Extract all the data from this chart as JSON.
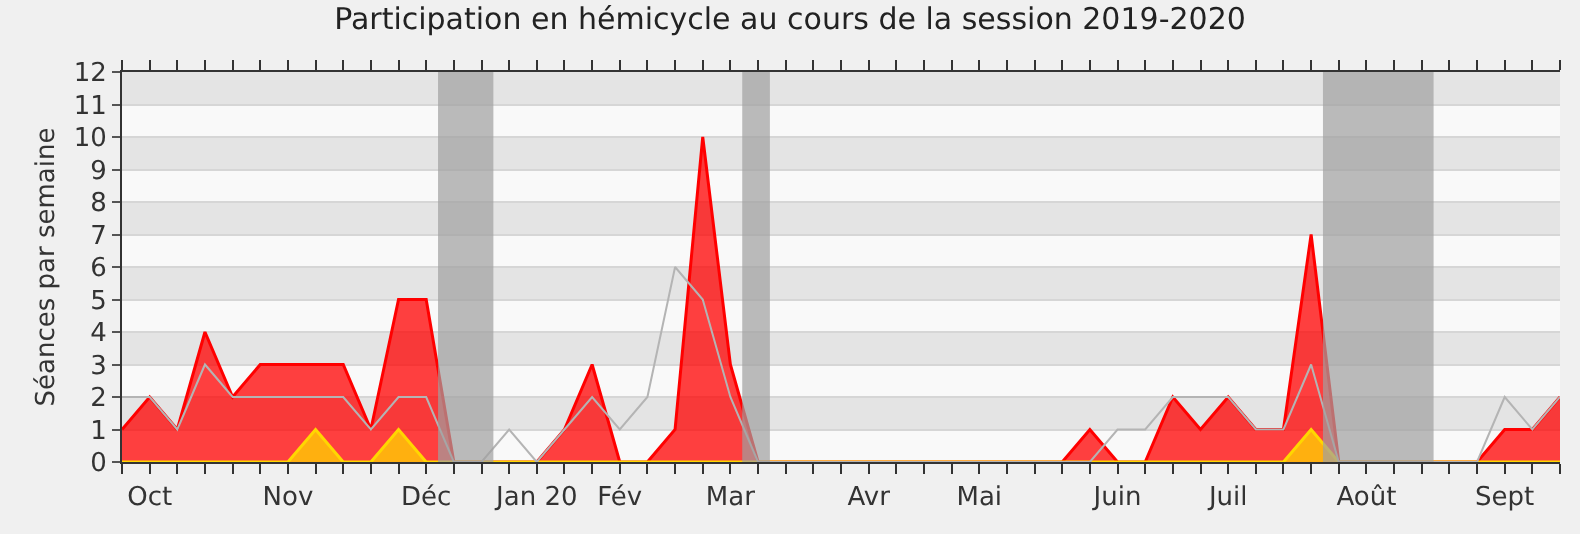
{
  "chart_data": {
    "type": "area",
    "title": "Participation en hémicycle au cours de la session 2019-2020",
    "ylabel": "Séances par semaine",
    "x": [
      "2019-09-30",
      "2019-10-07",
      "2019-10-14",
      "2019-10-21",
      "2019-10-28",
      "2019-11-04",
      "2019-11-11",
      "2019-11-18",
      "2019-11-25",
      "2019-12-02",
      "2019-12-09",
      "2019-12-16",
      "2019-12-23",
      "2019-12-30",
      "2020-01-06",
      "2020-01-13",
      "2020-01-20",
      "2020-01-27",
      "2020-02-03",
      "2020-02-10",
      "2020-02-17",
      "2020-02-24",
      "2020-03-02",
      "2020-03-09",
      "2020-03-16",
      "2020-03-23",
      "2020-03-30",
      "2020-04-06",
      "2020-04-13",
      "2020-04-20",
      "2020-04-27",
      "2020-05-04",
      "2020-05-11",
      "2020-05-18",
      "2020-05-25",
      "2020-06-01",
      "2020-06-08",
      "2020-06-15",
      "2020-06-22",
      "2020-06-29",
      "2020-07-06",
      "2020-07-13",
      "2020-07-20",
      "2020-07-27",
      "2020-08-03",
      "2020-08-10",
      "2020-08-17",
      "2020-08-24",
      "2020-08-31",
      "2020-09-07",
      "2020-09-14",
      "2020-09-21",
      "2020-09-28"
    ],
    "series": [
      {
        "color": "#ff0000",
        "values": [
          1,
          2,
          1,
          4,
          2,
          3,
          3,
          3,
          3,
          1,
          5,
          5,
          0,
          0,
          0,
          0,
          1,
          3,
          0,
          0,
          1,
          10,
          3,
          0,
          0,
          0,
          0,
          0,
          0,
          0,
          0,
          0,
          0,
          0,
          0,
          1,
          0,
          0,
          2,
          1,
          2,
          1,
          1,
          7,
          0,
          0,
          0,
          0,
          0,
          0,
          1,
          1,
          2
        ]
      },
      {
        "color": "#ffd700",
        "values": [
          0,
          0,
          0,
          0,
          0,
          0,
          0,
          1,
          0,
          0,
          1,
          0,
          0,
          0,
          0,
          0,
          0,
          0,
          0,
          0,
          0,
          0,
          0,
          0,
          0,
          0,
          0,
          0,
          0,
          0,
          0,
          0,
          0,
          0,
          0,
          0,
          0,
          0,
          0,
          0,
          0,
          0,
          0,
          1,
          0,
          0,
          0,
          0,
          0,
          0,
          0,
          0,
          0
        ]
      },
      {
        "type": "line",
        "color": "#b4b4b4",
        "values": [
          2,
          2,
          1,
          3,
          2,
          2,
          2,
          2,
          2,
          1,
          2,
          2,
          0,
          0,
          1,
          0,
          1,
          2,
          1,
          2,
          6,
          5,
          2,
          0,
          0,
          0,
          0,
          0,
          0,
          0,
          0,
          0,
          0,
          0,
          0,
          0,
          1,
          1,
          2,
          2,
          2,
          1,
          1,
          3,
          0,
          0,
          0,
          0,
          0,
          0,
          2,
          1,
          2
        ]
      }
    ],
    "xlim": [
      "2019-09-30",
      "2020-09-28"
    ],
    "xticks": [
      {
        "value": "2019-09-30",
        "label": null
      },
      {
        "value": "2019-10-07",
        "label": "Oct"
      },
      {
        "value": "2019-10-14",
        "label": null
      },
      {
        "value": "2019-10-21",
        "label": null
      },
      {
        "value": "2019-10-28",
        "label": null
      },
      {
        "value": "2019-11-04",
        "label": null
      },
      {
        "value": "2019-11-11",
        "label": "Nov"
      },
      {
        "value": "2019-11-18",
        "label": null
      },
      {
        "value": "2019-11-25",
        "label": null
      },
      {
        "value": "2019-12-02",
        "label": null
      },
      {
        "value": "2019-12-09",
        "label": null
      },
      {
        "value": "2019-12-16",
        "label": "Déc"
      },
      {
        "value": "2019-12-23",
        "label": null
      },
      {
        "value": "2019-12-30",
        "label": null
      },
      {
        "value": "2020-01-06",
        "label": null
      },
      {
        "value": "2020-01-13",
        "label": "Jan 20"
      },
      {
        "value": "2020-01-20",
        "label": null
      },
      {
        "value": "2020-01-27",
        "label": null
      },
      {
        "value": "2020-02-03",
        "label": "Fév"
      },
      {
        "value": "2020-02-10",
        "label": null
      },
      {
        "value": "2020-02-17",
        "label": null
      },
      {
        "value": "2020-02-24",
        "label": null
      },
      {
        "value": "2020-03-02",
        "label": "Mar"
      },
      {
        "value": "2020-03-09",
        "label": null
      },
      {
        "value": "2020-03-16",
        "label": null
      },
      {
        "value": "2020-03-23",
        "label": null
      },
      {
        "value": "2020-03-30",
        "label": null
      },
      {
        "value": "2020-04-06",
        "label": "Avr"
      },
      {
        "value": "2020-04-13",
        "label": null
      },
      {
        "value": "2020-04-20",
        "label": null
      },
      {
        "value": "2020-04-27",
        "label": null
      },
      {
        "value": "2020-05-04",
        "label": "Mai"
      },
      {
        "value": "2020-05-11",
        "label": null
      },
      {
        "value": "2020-05-18",
        "label": null
      },
      {
        "value": "2020-05-25",
        "label": null
      },
      {
        "value": "2020-06-01",
        "label": null
      },
      {
        "value": "2020-06-08",
        "label": "Juin"
      },
      {
        "value": "2020-06-15",
        "label": null
      },
      {
        "value": "2020-06-22",
        "label": null
      },
      {
        "value": "2020-06-29",
        "label": null
      },
      {
        "value": "2020-07-06",
        "label": "Juil"
      },
      {
        "value": "2020-07-13",
        "label": null
      },
      {
        "value": "2020-07-20",
        "label": null
      },
      {
        "value": "2020-07-27",
        "label": null
      },
      {
        "value": "2020-08-03",
        "label": null
      },
      {
        "value": "2020-08-10",
        "label": "Août"
      },
      {
        "value": "2020-08-17",
        "label": null
      },
      {
        "value": "2020-08-24",
        "label": null
      },
      {
        "value": "2020-08-31",
        "label": null
      },
      {
        "value": "2020-09-07",
        "label": null
      },
      {
        "value": "2020-09-14",
        "label": "Sept"
      },
      {
        "value": "2020-09-21",
        "label": null
      },
      {
        "value": "2020-09-28",
        "label": null
      }
    ],
    "ylim": [
      0,
      12
    ],
    "yticks": [
      0,
      1,
      2,
      3,
      4,
      5,
      6,
      7,
      8,
      9,
      10,
      11,
      12
    ],
    "bands": [
      {
        "axis": "x",
        "from": "2019-12-19",
        "to": "2020-01-02",
        "color": "#a0a0a0"
      },
      {
        "axis": "x",
        "from": "2020-03-05",
        "to": "2020-03-12",
        "color": "#a0a0a0"
      },
      {
        "axis": "x",
        "from": "2020-07-30",
        "to": "2020-08-27",
        "color": "#a0a0a0"
      }
    ],
    "grid": "y"
  }
}
